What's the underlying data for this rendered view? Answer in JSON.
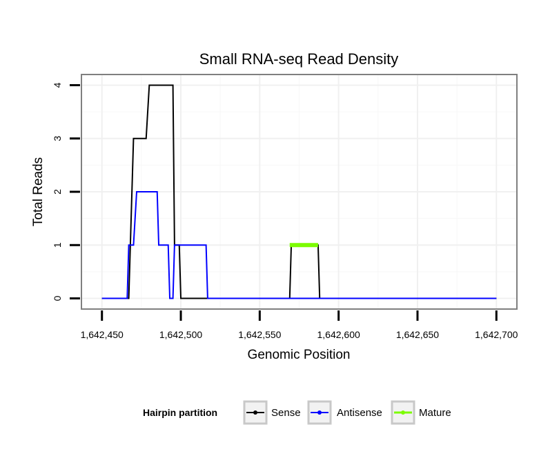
{
  "chart_data": {
    "type": "line",
    "title": "Small RNA-seq Read Density",
    "xlabel": "Genomic Position",
    "ylabel": "Total Reads",
    "xlim": [
      1642437,
      1642713
    ],
    "ylim": [
      -0.2,
      4.2
    ],
    "x_ticks": [
      1642450,
      1642500,
      1642550,
      1642600,
      1642650,
      1642700
    ],
    "x_tick_labels": [
      "1,642,450",
      "1,642,500",
      "1,642,550",
      "1,642,600",
      "1,642,650",
      "1,642,700"
    ],
    "y_ticks": [
      0,
      1,
      2,
      3,
      4
    ],
    "y_tick_labels": [
      "0",
      "1",
      "2",
      "3",
      "4"
    ],
    "grid": true,
    "legend": {
      "title": "Hairpin partition",
      "position": "bottom"
    },
    "series": [
      {
        "name": "Sense",
        "color": "#000000",
        "x": [
          1642450,
          1642467,
          1642470,
          1642471,
          1642478,
          1642480,
          1642481,
          1642495,
          1642496,
          1642499,
          1642500,
          1642569,
          1642570,
          1642587,
          1642588,
          1642700
        ],
        "y": [
          0,
          0,
          3,
          3,
          3,
          4,
          4,
          4,
          1,
          1,
          0,
          0,
          1,
          1,
          0,
          0
        ]
      },
      {
        "name": "Antisense",
        "color": "#0000ff",
        "x": [
          1642450,
          1642466,
          1642467,
          1642470,
          1642472,
          1642473,
          1642485,
          1642486,
          1642492,
          1642493,
          1642495,
          1642496,
          1642516,
          1642517,
          1642700
        ],
        "y": [
          0,
          0,
          1,
          1,
          2,
          2,
          2,
          1,
          1,
          0,
          0,
          1,
          1,
          0,
          0
        ]
      },
      {
        "name": "Mature",
        "color": "#7cfc00",
        "x": [
          1642569,
          1642587
        ],
        "y": [
          1,
          1
        ]
      }
    ]
  }
}
